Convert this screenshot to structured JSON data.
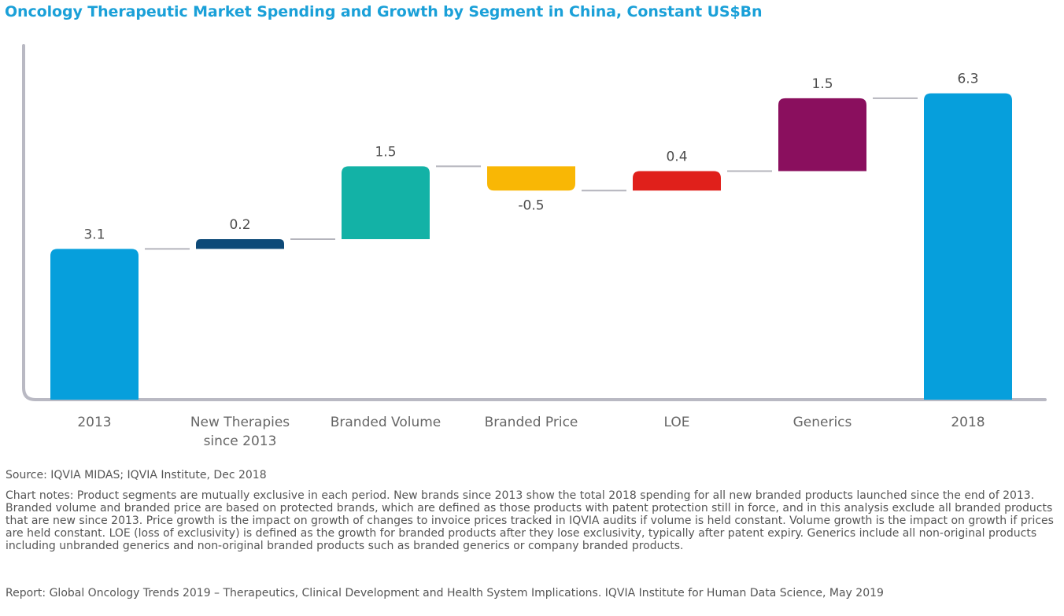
{
  "title": "Oncology Therapeutic Market Spending and Growth by Segment in China, Constant US$Bn",
  "colors": {
    "title": "#1aa0d8",
    "axis": "#b9b9c3",
    "connector": "#b4b4bc",
    "bars": [
      "#069fdc",
      "#0d4a78",
      "#13b2a6",
      "#f9b705",
      "#e0201b",
      "#8a0f5e",
      "#069fdc"
    ]
  },
  "chart_data": {
    "type": "waterfall",
    "categories": [
      "2013",
      "New Therapies\nsince 2013",
      "Branded Volume",
      "Branded Price",
      "LOE",
      "Generics",
      "2018"
    ],
    "values": [
      3.1,
      0.2,
      1.5,
      -0.5,
      0.4,
      1.5,
      6.3
    ],
    "labels": [
      "3.1",
      "0.2",
      "1.5",
      "-0.5",
      "0.4",
      "1.5",
      "6.3"
    ],
    "kinds": [
      "total",
      "delta",
      "delta",
      "delta",
      "delta",
      "delta",
      "total"
    ],
    "title": "Oncology Therapeutic Market Spending and Growth by Segment in China, Constant US$Bn",
    "xlabel": "",
    "ylabel": "",
    "unit": "Constant US$Bn",
    "grid": false,
    "legend": "none"
  },
  "footer": {
    "source": "Source: IQVIA MIDAS; IQVIA Institute, Dec 2018",
    "notes": "Chart notes: Product segments are mutually exclusive in each period. New brands since 2013 show the total 2018 spending for all new branded products launched since the end of 2013. Branded volume and branded price are based on protected brands, which are defined as those products with patent protection still in force, and in this analysis exclude all branded products that are new since 2013. Price growth is the impact on growth of changes to invoice prices tracked in IQVIA audits if volume is held constant. Volume growth is the impact on growth if prices are held constant. LOE (loss of exclusivity) is defined as the growth for branded products after they lose exclusivity, typically after patent expiry. Generics include all non-original products including unbranded generics and non-original branded products such as branded generics or company branded products.",
    "report": "Report: Global Oncology Trends 2019 – Therapeutics, Clinical Development and Health System Implications. IQVIA Institute for Human Data Science, May 2019"
  }
}
